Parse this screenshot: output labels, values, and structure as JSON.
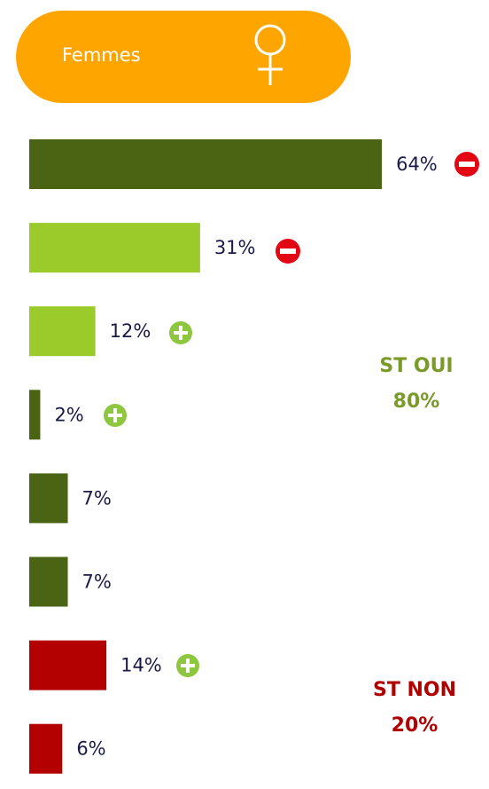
{
  "header": {
    "label": "Femmes"
  },
  "chart_data": {
    "type": "bar",
    "orientation": "horizontal",
    "values": [
      64,
      31,
      12,
      2,
      7,
      7,
      14,
      6
    ],
    "value_labels": [
      "64%",
      "31%",
      "12%",
      "2%",
      "7%",
      "7%",
      "14%",
      "6%"
    ],
    "colors": [
      "#4a6414",
      "#9acb2a",
      "#9acb2a",
      "#4a6414",
      "#4a6414",
      "#4a6414",
      "#b30000",
      "#b30000"
    ],
    "annotations": [
      {
        "lines": [
          "ST OUI",
          "80%"
        ],
        "color": "#7a9a2a"
      },
      {
        "lines": [
          "ST NON",
          "20%"
        ],
        "color": "#b00000"
      }
    ]
  }
}
